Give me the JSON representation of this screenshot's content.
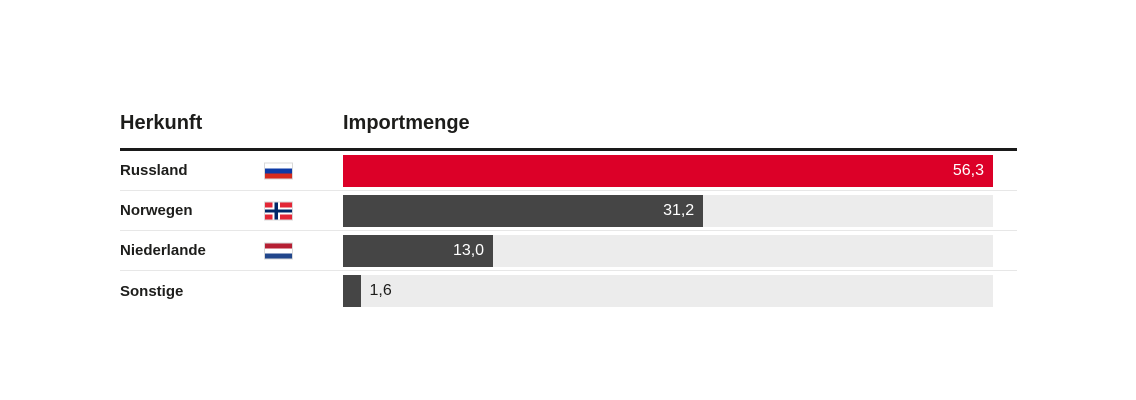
{
  "table": {
    "origin_header": "Herkunft",
    "amount_header": "Importmenge"
  },
  "chart_data": {
    "type": "bar",
    "orientation": "horizontal",
    "categories": [
      "Russland",
      "Norwegen",
      "Niederlande",
      "Sonstige"
    ],
    "values": [
      56.3,
      31.2,
      13.0,
      1.6
    ],
    "value_labels": [
      "56,3",
      "31,2",
      "13,0",
      "1,6"
    ],
    "flags": [
      "russia",
      "norway",
      "netherlands",
      null
    ],
    "xlim": [
      0,
      56.3
    ],
    "legend_position": "none",
    "grid": false,
    "bar_colors": [
      "#dc0028",
      "#454545",
      "#454545",
      "#454545"
    ],
    "track_color": "#ececec"
  },
  "colors": {
    "accent_red": "#dc0028",
    "bar_gray": "#454545",
    "track_gray": "#ececec",
    "text_dark": "#1d1d1b",
    "header_rule": "#1a1a1a",
    "row_separator": "#e7e7e7"
  }
}
